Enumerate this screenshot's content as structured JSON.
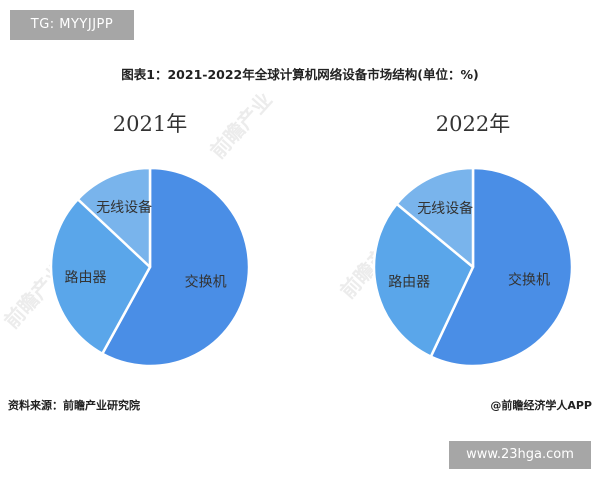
{
  "tg_tag": "TG: MYYJJPP",
  "figure_title": "图表1：2021-2022年全球计算机网络设备市场结构(单位：%)",
  "source_text": "资料来源：前瞻产业研究院",
  "credit_text": "@前瞻经济学人APP",
  "site_tag": "www.23hga.com",
  "watermark": "前瞻产业",
  "colors": {
    "switch": "#4a8ee6",
    "router": "#5aa6ea",
    "wireless": "#79b4ec",
    "divider": "#ffffff",
    "label": "#333333"
  },
  "chart_data": [
    {
      "type": "pie",
      "title": "2021年",
      "categories": [
        "交换机",
        "路由器",
        "无线设备"
      ],
      "values": [
        58,
        29,
        13
      ]
    },
    {
      "type": "pie",
      "title": "2022年",
      "categories": [
        "交换机",
        "路由器",
        "无线设备"
      ],
      "values": [
        57,
        29,
        14
      ]
    }
  ]
}
